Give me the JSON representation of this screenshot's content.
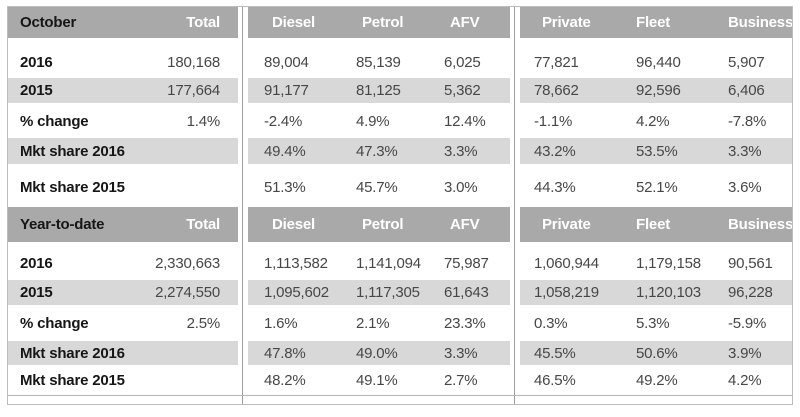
{
  "colors": {
    "header_bg": "#a9a9a9",
    "header_text": "#ffffff",
    "shaded_row_bg": "#d8d8d8",
    "row_bg": "#ffffff",
    "label_text": "#161616",
    "value_text": "#474747",
    "divider_line": "#9e9e9e",
    "outer_border": "#bcbcbc"
  },
  "chart_data": [
    {
      "type": "table",
      "title": "October",
      "columns": [
        "October",
        "Total",
        "Diesel",
        "Petrol",
        "AFV",
        "Private",
        "Fleet",
        "Business"
      ],
      "rows": [
        [
          "2016",
          "180,168",
          "89,004",
          "85,139",
          "6,025",
          "77,821",
          "96,440",
          "5,907"
        ],
        [
          "2015",
          "177,664",
          "91,177",
          "81,125",
          "5,362",
          "78,662",
          "92,596",
          "6,406"
        ],
        [
          "% change",
          "1.4%",
          "-2.4%",
          "4.9%",
          "12.4%",
          "-1.1%",
          "4.2%",
          "-7.8%"
        ],
        [
          "Mkt share 2016",
          "",
          "49.4%",
          "47.3%",
          "3.3%",
          "43.2%",
          "53.5%",
          "3.3%"
        ],
        [
          "Mkt share 2015",
          "",
          "51.3%",
          "45.7%",
          "3.0%",
          "44.3%",
          "52.1%",
          "3.6%"
        ]
      ]
    },
    {
      "type": "table",
      "title": "Year-to-date",
      "columns": [
        "Year-to-date",
        "Total",
        "Diesel",
        "Petrol",
        "AFV",
        "Private",
        "Fleet",
        "Business"
      ],
      "rows": [
        [
          "2016",
          "2,330,663",
          "1,113,582",
          "1,141,094",
          "75,987",
          "1,060,944",
          "1,179,158",
          "90,561"
        ],
        [
          "2015",
          "2,274,550",
          "1,095,602",
          "1,117,305",
          "61,643",
          "1,058,219",
          "1,120,103",
          "96,228"
        ],
        [
          "% change",
          "2.5%",
          "1.6%",
          "2.1%",
          "23.3%",
          "0.3%",
          "5.3%",
          "-5.9%"
        ],
        [
          "Mkt share 2016",
          "",
          "47.8%",
          "49.0%",
          "3.3%",
          "45.5%",
          "50.6%",
          "3.9%"
        ],
        [
          "Mkt share 2015",
          "",
          "48.2%",
          "49.1%",
          "2.7%",
          "46.5%",
          "49.2%",
          "4.2%"
        ]
      ]
    }
  ]
}
